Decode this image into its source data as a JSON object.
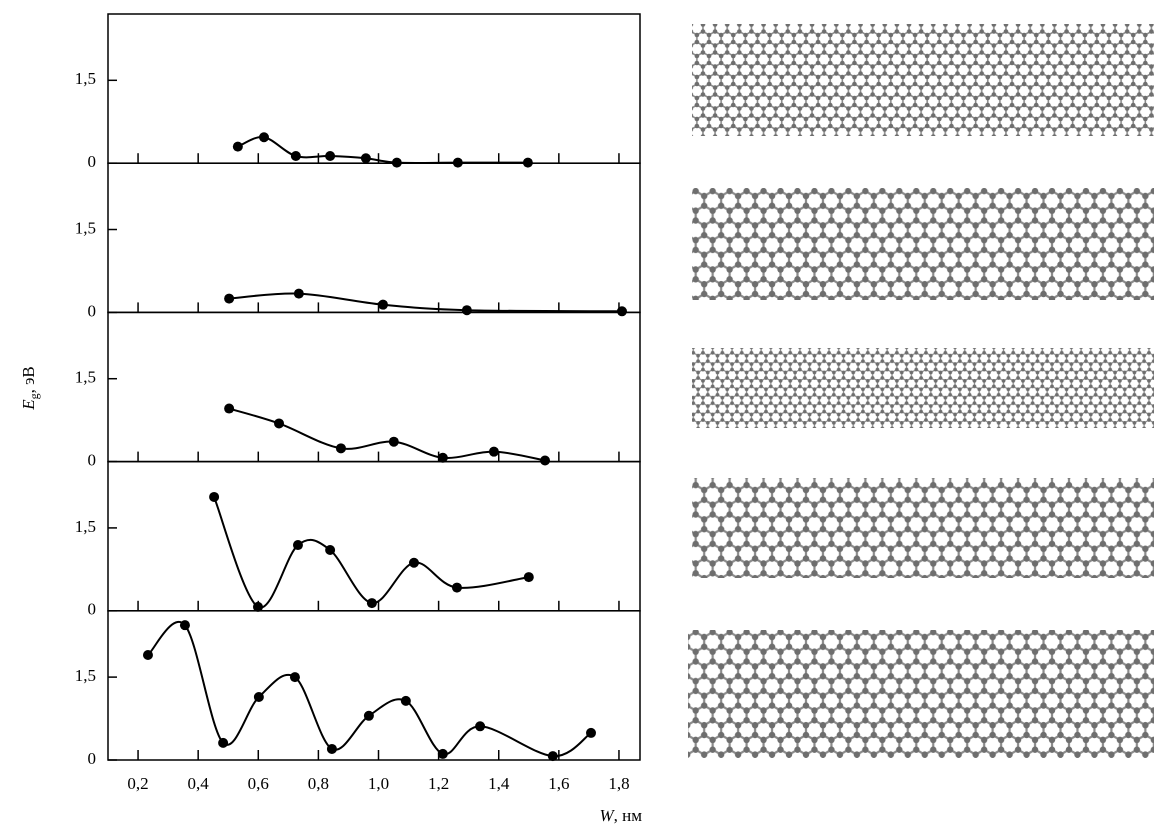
{
  "chart_data": [
    {
      "type": "line",
      "x": [
        0.532,
        0.619,
        0.725,
        0.839,
        0.958,
        1.061,
        1.264,
        1.497
      ],
      "values": [
        0.3,
        0.47,
        0.13,
        0.13,
        0.09,
        0.01,
        0.01,
        0.01
      ],
      "xlim": [
        0.1,
        1.87
      ],
      "ylim": [
        0,
        2.7
      ],
      "yticks": [
        0,
        {
          "value": 1.5,
          "label": "1,5"
        }
      ],
      "color": "#000000"
    },
    {
      "type": "line",
      "x": [
        0.503,
        0.735,
        1.015,
        1.294,
        1.81
      ],
      "values": [
        0.25,
        0.34,
        0.14,
        0.04,
        0.02
      ],
      "xlim": [
        0.1,
        1.87
      ],
      "ylim": [
        0,
        2.7
      ],
      "yticks": [
        0,
        {
          "value": 1.5,
          "label": "1,5"
        }
      ],
      "color": "#000000"
    },
    {
      "type": "line",
      "x": [
        0.503,
        0.669,
        0.875,
        1.051,
        1.214,
        1.384,
        1.554
      ],
      "values": [
        0.96,
        0.69,
        0.24,
        0.36,
        0.07,
        0.18,
        0.02
      ],
      "xlim": [
        0.1,
        1.87
      ],
      "ylim": [
        0,
        2.7
      ],
      "yticks": [
        0,
        {
          "value": 1.5,
          "label": "1,5"
        }
      ],
      "color": "#000000"
    },
    {
      "type": "line",
      "x": [
        0.453,
        0.599,
        0.732,
        0.839,
        0.978,
        1.118,
        1.261,
        1.5
      ],
      "values": [
        2.06,
        0.07,
        1.19,
        1.1,
        0.14,
        0.87,
        0.42,
        0.61
      ],
      "xlim": [
        0.1,
        1.87
      ],
      "ylim": [
        0,
        2.7
      ],
      "yticks": [
        0,
        {
          "value": 1.5,
          "label": "1,5"
        }
      ],
      "color": "#000000"
    },
    {
      "type": "line",
      "x": [
        0.233,
        0.356,
        0.483,
        0.602,
        0.722,
        0.845,
        0.968,
        1.091,
        1.214,
        1.338,
        1.58,
        1.707
      ],
      "values": [
        1.9,
        2.44,
        0.31,
        1.14,
        1.5,
        0.2,
        0.8,
        1.07,
        0.11,
        0.61,
        0.07,
        0.49
      ],
      "xlim": [
        0.1,
        1.87
      ],
      "ylim": [
        0,
        2.7
      ],
      "yticks": [
        0,
        {
          "value": 1.5,
          "label": "1,5"
        }
      ],
      "color": "#000000",
      "xticks": [
        {
          "value": 0.2,
          "label": "0,2"
        },
        {
          "value": 0.4,
          "label": "0,4"
        },
        {
          "value": 0.6,
          "label": "0,6"
        },
        {
          "value": 0.8,
          "label": "0,8"
        },
        {
          "value": 1.0,
          "label": "1,0"
        },
        {
          "value": 1.2,
          "label": "1,2"
        },
        {
          "value": 1.4,
          "label": "1,4"
        },
        {
          "value": 1.6,
          "label": "1,6"
        },
        {
          "value": 1.8,
          "label": "1,8"
        }
      ],
      "xlabel": {
        "symbol": "W",
        "unit": ", нм"
      },
      "ylabel": {
        "symbol": "E",
        "subscript": "g",
        "unit": ", эВ"
      }
    }
  ]
}
